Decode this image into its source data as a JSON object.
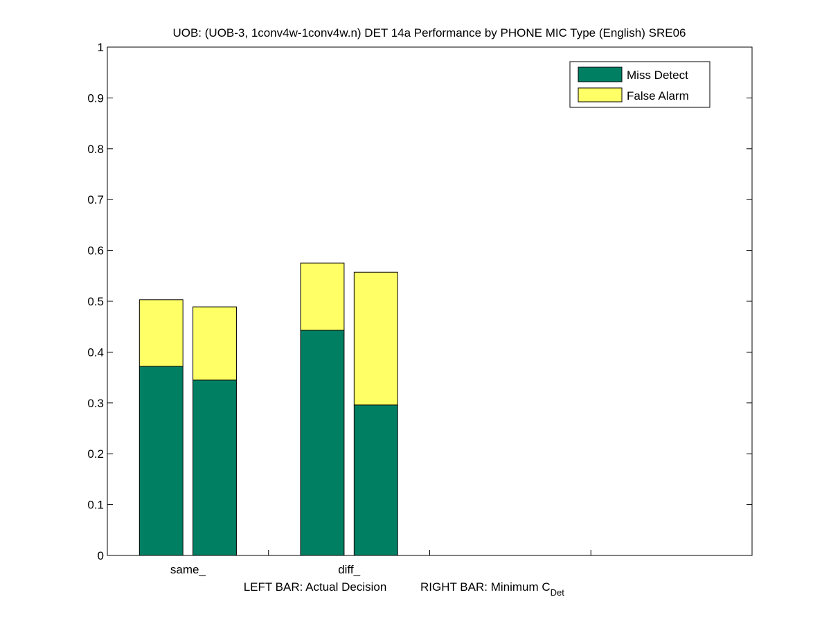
{
  "chart_data": {
    "type": "bar",
    "stacked": true,
    "title": "UOB: (UOB-3, 1conv4w-1conv4w.n) DET 14a Performance by PHONE MIC Type (English) SRE06",
    "xlabel_left": "LEFT BAR: Actual Decision",
    "xlabel_right_main": "RIGHT BAR: Minimum C",
    "xlabel_right_sub": "Det",
    "ylim": [
      0,
      1
    ],
    "yticks": [
      "0",
      "0.1",
      "0.2",
      "0.3",
      "0.4",
      "0.5",
      "0.6",
      "0.7",
      "0.8",
      "0.9",
      "1"
    ],
    "categories": [
      "same_",
      "diff_"
    ],
    "legend": {
      "position": "top-right",
      "entries": [
        "Miss Detect",
        "False Alarm"
      ]
    },
    "series": [
      {
        "name": "Miss Detect",
        "color": "#007f63",
        "values": [
          [
            0.372,
            0.345
          ],
          [
            0.443,
            0.296
          ]
        ]
      },
      {
        "name": "False Alarm",
        "color": "#ffff66",
        "values": [
          [
            0.131,
            0.144
          ],
          [
            0.132,
            0.261
          ]
        ]
      }
    ]
  }
}
